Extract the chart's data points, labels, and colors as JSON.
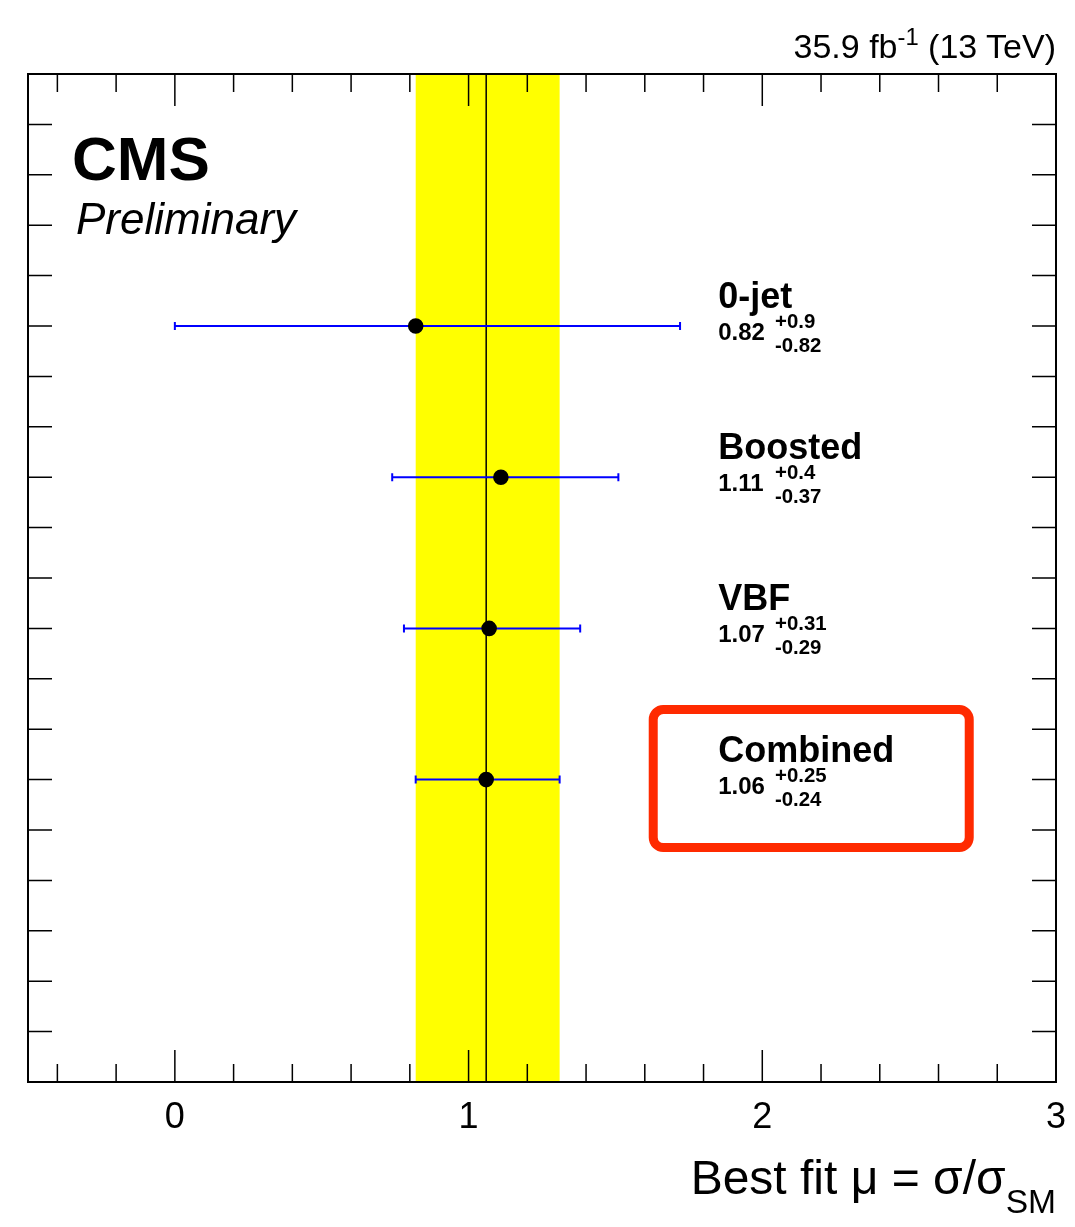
{
  "chart_data": {
    "type": "scatter",
    "orientation": "horizontal",
    "subtitle": "35.9 fb$^{-1}$ (13 TeV)",
    "xlabel": "Best fit μ = σ/σ$_{SM}$",
    "categories": [
      "0-jet",
      "Boosted",
      "VBF",
      "Combined"
    ],
    "series": [
      {
        "color": "#000000",
        "values": [
          0.82,
          1.11,
          1.07,
          1.06
        ],
        "errors": [
          [
            0,
            1.72
          ],
          [
            0.74,
            1.51
          ],
          [
            0.78,
            1.38
          ],
          [
            0.82,
            1.31
          ]
        ]
      }
    ],
    "xlim": [
      -0.5,
      3
    ],
    "xticks": [
      0,
      1,
      2,
      3
    ],
    "marker": "circle",
    "bands": [
      {
        "axis": "x",
        "from": 0.82,
        "to": 1.31,
        "color": "#ffff00"
      }
    ],
    "ref_lines": [
      {
        "axis": "x",
        "value": 1.06,
        "color": "#000000"
      }
    ],
    "annotations": [
      "CMS",
      "Preliminary",
      "0.82$^{+0.9}$$_{-0.82}$",
      "1.11$^{+0.4}$$_{-0.37}$",
      "1.07$^{+0.31}$$_{-0.29}$",
      "1.06$^{+0.25}$$_{-0.24}$"
    ]
  }
}
